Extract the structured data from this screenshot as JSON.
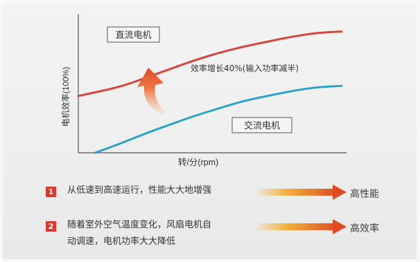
{
  "chart_data": {
    "type": "line",
    "title": "",
    "xlabel": "转/分(rpm)",
    "ylabel": "电机效率(100%)",
    "x": [
      0,
      1,
      2,
      3,
      4,
      5,
      6,
      7,
      8,
      9,
      10
    ],
    "series": [
      {
        "name": "直流电机",
        "values": [
          0.45,
          0.52,
          0.59,
          0.66,
          0.73,
          0.79,
          0.84,
          0.88,
          0.92,
          0.95,
          0.96
        ]
      },
      {
        "name": "交流电机",
        "values": [
          0.0,
          0.07,
          0.15,
          0.22,
          0.29,
          0.35,
          0.41,
          0.45,
          0.49,
          0.52,
          0.53
        ]
      }
    ],
    "annotations": [
      "效率增长40%(输入功率减半)"
    ],
    "colors": {
      "dc": "#d8433a",
      "ac": "#2aa3c9",
      "arrow": "#e85a2c"
    },
    "grid": false,
    "ylim": [
      0,
      1.1
    ]
  },
  "notes": [
    {
      "number": "1",
      "text": [
        "从低速到高速运行，性能大大地增强"
      ],
      "result": "高性能"
    },
    {
      "number": "2",
      "text": [
        "随着室外空气温度变化，风扇电机自",
        "动调速，电机功率大大降低"
      ],
      "result": "高效率"
    }
  ]
}
